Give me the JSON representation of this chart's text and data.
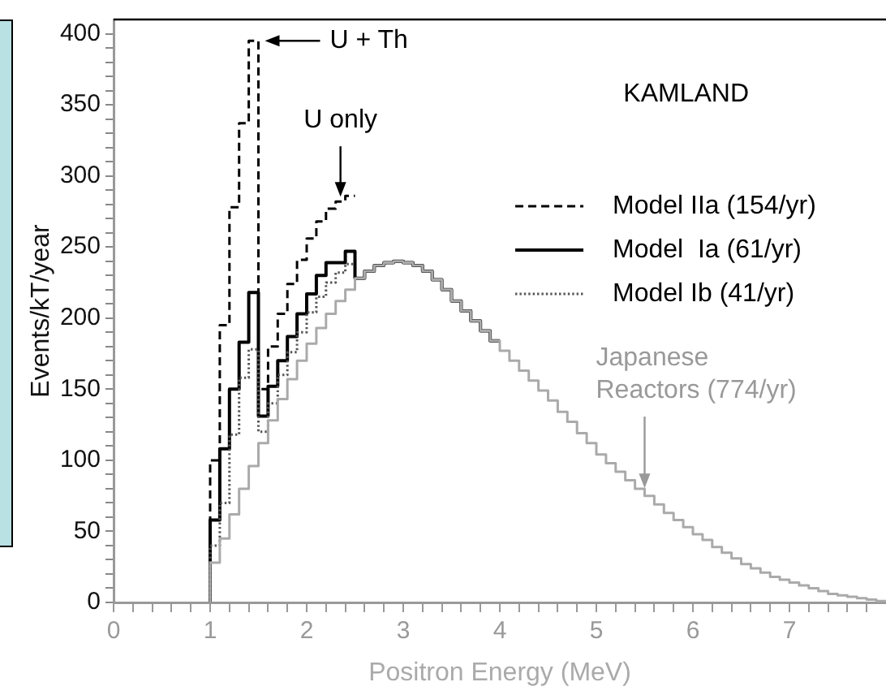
{
  "chart_data": {
    "type": "histogram",
    "xlabel": "Positron Energy (MeV)",
    "ylabel": "Events/kT/year",
    "bins": [
      1.0,
      1.1,
      1.2,
      1.3,
      1.4,
      1.5,
      1.6,
      1.7,
      1.8,
      1.9,
      2.0,
      2.1,
      2.2,
      2.3,
      2.4,
      2.5,
      2.6,
      2.7,
      2.8,
      2.9,
      3.0,
      3.1,
      3.2,
      3.3,
      3.4,
      3.5,
      3.6,
      3.7,
      3.8,
      3.9,
      4.0,
      4.1,
      4.2,
      4.3,
      4.4,
      4.5,
      4.6,
      4.7,
      4.8,
      4.9,
      5.0,
      5.1,
      5.2,
      5.3,
      5.4,
      5.5,
      5.6,
      5.7,
      5.8,
      5.9,
      6.0,
      6.1,
      6.2,
      6.3,
      6.4,
      6.5,
      6.6,
      6.7,
      6.8,
      6.9,
      7.0,
      7.1,
      7.2,
      7.3,
      7.4,
      7.5,
      7.6,
      7.7,
      7.8,
      7.9,
      8.0
    ],
    "series": [
      {
        "color": "#aaaaaa",
        "line_style": "solid",
        "values": [
          28,
          45,
          62,
          80,
          96,
          112,
          128,
          143,
          157,
          170,
          182,
          193,
          203,
          212,
          220,
          228,
          233,
          237,
          239,
          240,
          239,
          237,
          233,
          227,
          220,
          212,
          205,
          198,
          191,
          184,
          177,
          170,
          163,
          156,
          149,
          142,
          134,
          127,
          119,
          112,
          104,
          98,
          92,
          86,
          80,
          75,
          69,
          63,
          58,
          53,
          48,
          44,
          39,
          35,
          31,
          27,
          24,
          21,
          18,
          16,
          14,
          12,
          10,
          8,
          6,
          5,
          4,
          3,
          2,
          1
        ]
      },
      {
        "name": "Model Ib (41/yr)",
        "color": "#555555",
        "line_style": "dotted",
        "bins": [
          1.0,
          1.1,
          1.2,
          1.3,
          1.4,
          1.5,
          1.6,
          1.7,
          1.8,
          1.9,
          2.0,
          2.1,
          2.2,
          2.3,
          2.4,
          2.5
        ],
        "values": [
          40,
          70,
          118,
          158,
          178,
          120,
          140,
          160,
          176,
          190,
          204,
          215,
          225,
          232,
          238
        ]
      },
      {
        "name": "Model  Ia (61/yr)",
        "color": "#000000",
        "line_style": "solid",
        "bins": [
          1.0,
          1.1,
          1.2,
          1.3,
          1.4,
          1.5,
          1.6,
          1.7,
          1.8,
          1.9,
          2.0,
          2.1,
          2.2,
          2.3,
          2.4,
          2.5,
          2.6,
          2.7,
          2.8,
          2.9,
          3.0,
          3.1,
          3.2,
          3.3,
          3.4,
          3.5,
          3.6,
          3.7,
          3.8,
          3.9,
          4.0
        ],
        "values": [
          58,
          108,
          150,
          183,
          218,
          131,
          152,
          170,
          187,
          203,
          217,
          230,
          239,
          239,
          247,
          228,
          233,
          237,
          239,
          240,
          239,
          237,
          233,
          227,
          220,
          212,
          205,
          198,
          191,
          184
        ]
      },
      {
        "name": "Model IIa (154/yr)",
        "color": "#000000",
        "line_style": "dashed",
        "bins": [
          1.0,
          1.1,
          1.2,
          1.3,
          1.4,
          1.5,
          1.6,
          1.7,
          1.8,
          1.9,
          2.0,
          2.1,
          2.2,
          2.3,
          2.4,
          2.5
        ],
        "values": [
          100,
          195,
          278,
          337,
          395,
          150,
          180,
          203,
          224,
          241,
          256,
          268,
          277,
          282,
          286
        ]
      }
    ],
    "xlim": [
      0,
      8
    ],
    "xticks": [
      0,
      {
        "value": 0.2,
        "label": null
      },
      {
        "value": 0.4,
        "label": null
      },
      {
        "value": 0.6,
        "label": null
      },
      {
        "value": 0.8,
        "label": null
      },
      1,
      {
        "value": 1.2,
        "label": null
      },
      {
        "value": 1.4,
        "label": null
      },
      {
        "value": 1.6,
        "label": null
      },
      {
        "value": 1.8,
        "label": null
      },
      2,
      {
        "value": 2.2,
        "label": null
      },
      {
        "value": 2.4,
        "label": null
      },
      {
        "value": 2.6,
        "label": null
      },
      {
        "value": 2.8,
        "label": null
      },
      3,
      {
        "value": 3.2,
        "label": null
      },
      {
        "value": 3.4,
        "label": null
      },
      {
        "value": 3.6,
        "label": null
      },
      {
        "value": 3.8,
        "label": null
      },
      4,
      {
        "value": 4.2,
        "label": null
      },
      {
        "value": 4.4,
        "label": null
      },
      {
        "value": 4.6,
        "label": null
      },
      {
        "value": 4.8,
        "label": null
      },
      5,
      {
        "value": 5.2,
        "label": null
      },
      {
        "value": 5.4,
        "label": null
      },
      {
        "value": 5.6,
        "label": null
      },
      {
        "value": 5.8,
        "label": null
      },
      6,
      {
        "value": 6.2,
        "label": null
      },
      {
        "value": 6.4,
        "label": null
      },
      {
        "value": 6.6,
        "label": null
      },
      {
        "value": 6.8,
        "label": null
      },
      7,
      {
        "value": 7.2,
        "label": null
      },
      {
        "value": 7.4,
        "label": null
      },
      {
        "value": 7.6,
        "label": null
      },
      {
        "value": 7.8,
        "label": null
      }
    ],
    "ylim": [
      0,
      410
    ],
    "yticks": [
      0,
      {
        "value": 10,
        "label": null
      },
      {
        "value": 20,
        "label": null
      },
      {
        "value": 30,
        "label": null
      },
      {
        "value": 40,
        "label": null
      },
      50,
      {
        "value": 60,
        "label": null
      },
      {
        "value": 70,
        "label": null
      },
      {
        "value": 80,
        "label": null
      },
      {
        "value": 90,
        "label": null
      },
      100,
      {
        "value": 110,
        "label": null
      },
      {
        "value": 120,
        "label": null
      },
      {
        "value": 130,
        "label": null
      },
      {
        "value": 140,
        "label": null
      },
      150,
      {
        "value": 160,
        "label": null
      },
      {
        "value": 170,
        "label": null
      },
      {
        "value": 180,
        "label": null
      },
      {
        "value": 190,
        "label": null
      },
      200,
      {
        "value": 210,
        "label": null
      },
      {
        "value": 220,
        "label": null
      },
      {
        "value": 230,
        "label": null
      },
      {
        "value": 240,
        "label": null
      },
      250,
      {
        "value": 260,
        "label": null
      },
      {
        "value": 270,
        "label": null
      },
      {
        "value": 280,
        "label": null
      },
      {
        "value": 290,
        "label": null
      },
      300,
      {
        "value": 310,
        "label": null
      },
      {
        "value": 320,
        "label": null
      },
      {
        "value": 330,
        "label": null
      },
      {
        "value": 340,
        "label": null
      },
      350,
      {
        "value": 360,
        "label": null
      },
      {
        "value": 370,
        "label": null
      },
      {
        "value": 380,
        "label": null
      },
      {
        "value": 390,
        "label": null
      },
      400
    ],
    "annotations": [
      {
        "text": "U + Th",
        "x": 1.5,
        "y": 395
      },
      {
        "text": "U only",
        "x": 2.35,
        "y": 282
      },
      "KAMLAND",
      {
        "text": "Japanese Reactors (774/yr)",
        "x": 5.5,
        "y": 77
      }
    ],
    "grid": false,
    "legend": "right",
    "marker": "none"
  }
}
